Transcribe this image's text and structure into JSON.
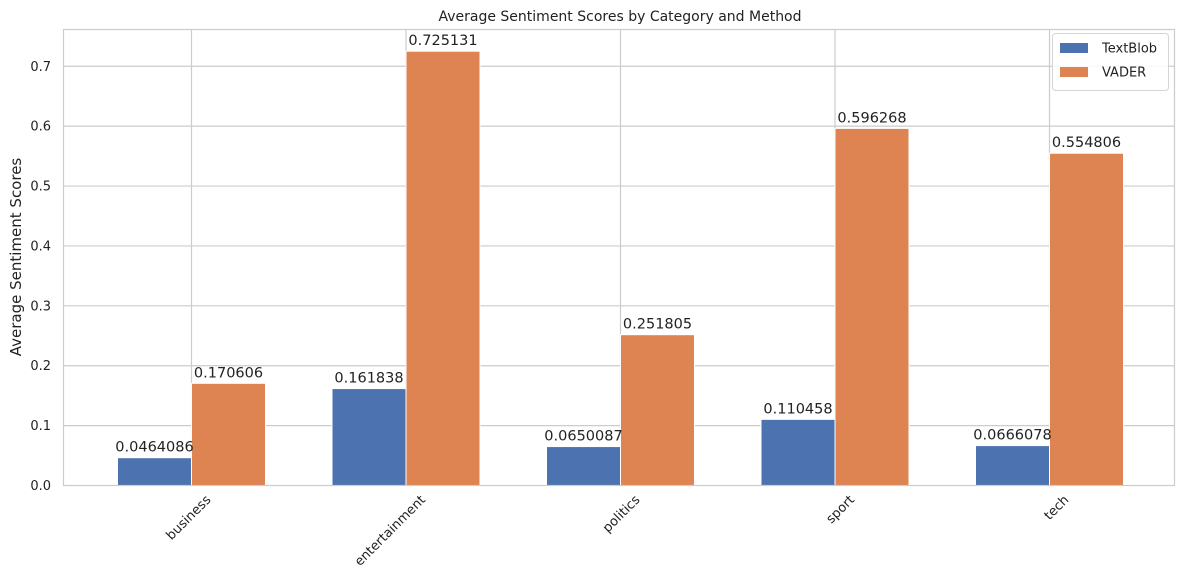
{
  "chart_data": {
    "type": "bar",
    "title": "Average Sentiment Scores by Category and Method",
    "xlabel": "",
    "ylabel": "Average Sentiment Scores",
    "categories": [
      "business",
      "entertainment",
      "politics",
      "sport",
      "tech"
    ],
    "series": [
      {
        "name": "TextBlob",
        "values": [
          0.0464086,
          0.161838,
          0.0650087,
          0.110458,
          0.0666078
        ],
        "labels": [
          "0.0464086",
          "0.161838",
          "0.0650087",
          "0.110458",
          "0.0666078"
        ],
        "color": "#4c72b0"
      },
      {
        "name": "VADER",
        "values": [
          0.170606,
          0.725131,
          0.251805,
          0.596268,
          0.554806
        ],
        "labels": [
          "0.170606",
          "0.725131",
          "0.251805",
          "0.596268",
          "0.554806"
        ],
        "color": "#dd8452"
      }
    ],
    "yticks": [
      "0.0",
      "0.1",
      "0.2",
      "0.3",
      "0.4",
      "0.5",
      "0.6",
      "0.7"
    ],
    "ylim": [
      0,
      0.7614
    ],
    "grid": true,
    "legend": "top-right",
    "xtick_rotation": 45
  }
}
